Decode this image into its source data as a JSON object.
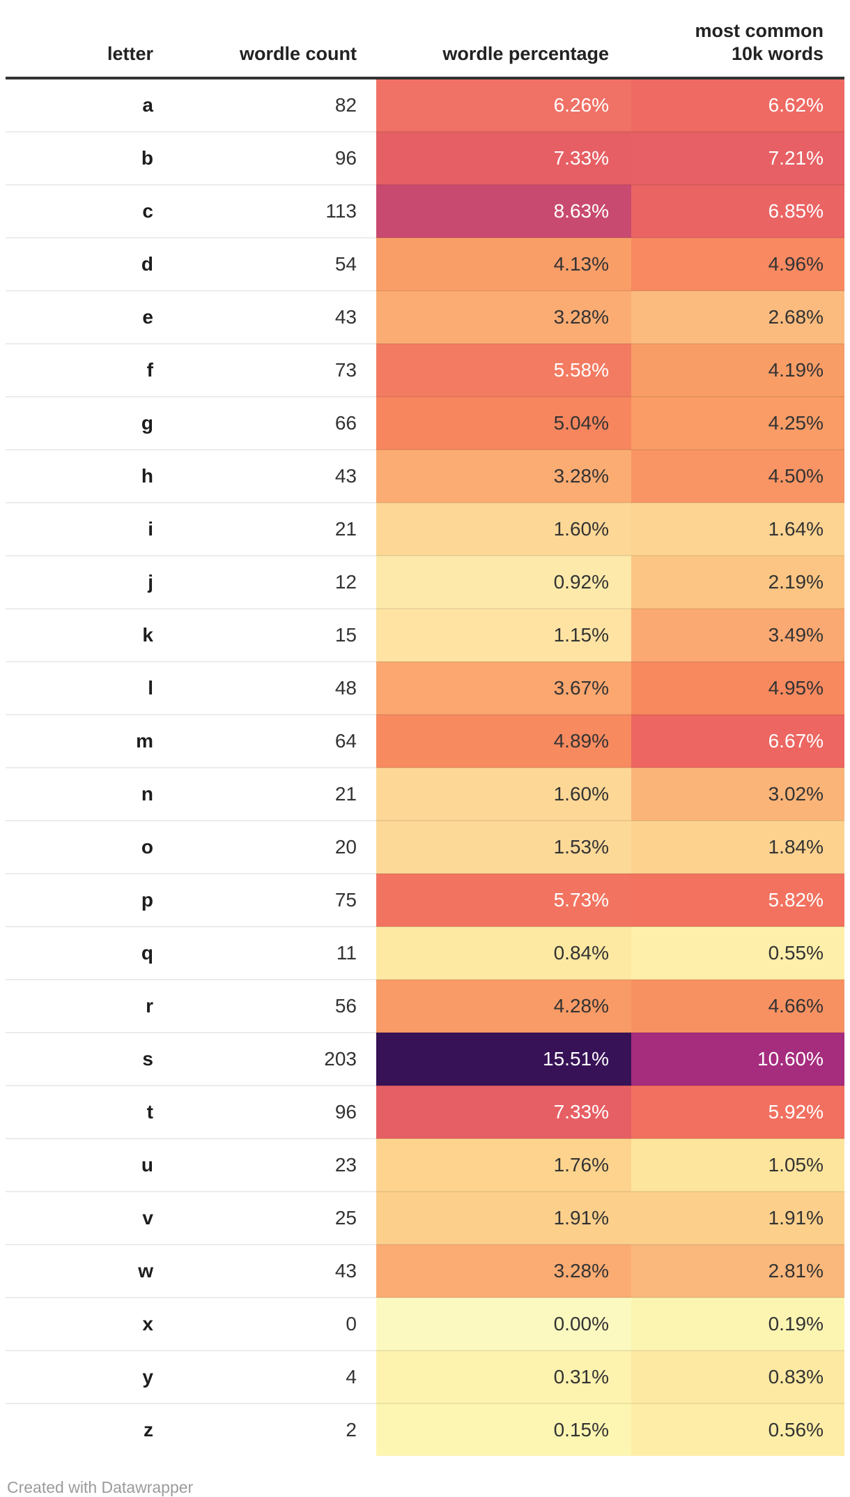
{
  "table": {
    "columns": [
      {
        "id": "letter",
        "label": "letter"
      },
      {
        "id": "wordle_count",
        "label": "wordle count"
      },
      {
        "id": "wordle_percentage",
        "label": "wordle percentage"
      },
      {
        "id": "common_10k",
        "label": "most common\n10k words"
      }
    ],
    "rows": [
      {
        "letter": "a",
        "count": "82",
        "wordle_pct": "6.26%",
        "wordle_bg": "#f07166",
        "wordle_fg": "#ffffff",
        "common_pct": "6.62%",
        "common_bg": "#ee6a63",
        "common_fg": "#ffffff"
      },
      {
        "letter": "b",
        "count": "96",
        "wordle_pct": "7.33%",
        "wordle_bg": "#e65f64",
        "wordle_fg": "#ffffff",
        "common_pct": "7.21%",
        "common_bg": "#e76065",
        "common_fg": "#ffffff"
      },
      {
        "letter": "c",
        "count": "113",
        "wordle_pct": "8.63%",
        "wordle_bg": "#c94a70",
        "wordle_fg": "#ffffff",
        "common_pct": "6.85%",
        "common_bg": "#eb6464",
        "common_fg": "#ffffff"
      },
      {
        "letter": "d",
        "count": "54",
        "wordle_pct": "4.13%",
        "wordle_bg": "#fa9e68",
        "wordle_fg": "#333333",
        "common_pct": "4.96%",
        "common_bg": "#f88961",
        "common_fg": "#333333"
      },
      {
        "letter": "e",
        "count": "43",
        "wordle_pct": "3.28%",
        "wordle_bg": "#fbac73",
        "wordle_fg": "#333333",
        "common_pct": "2.68%",
        "common_bg": "#fbbb7e",
        "common_fg": "#333333"
      },
      {
        "letter": "f",
        "count": "73",
        "wordle_pct": "5.58%",
        "wordle_bg": "#f37b62",
        "wordle_fg": "#ffffff",
        "common_pct": "4.19%",
        "common_bg": "#f99d67",
        "common_fg": "#333333"
      },
      {
        "letter": "g",
        "count": "66",
        "wordle_pct": "5.04%",
        "wordle_bg": "#f7865e",
        "wordle_fg": "#333333",
        "common_pct": "4.25%",
        "common_bg": "#f99c66",
        "common_fg": "#333333"
      },
      {
        "letter": "h",
        "count": "43",
        "wordle_pct": "3.28%",
        "wordle_bg": "#fbac73",
        "wordle_fg": "#333333",
        "common_pct": "4.50%",
        "common_bg": "#f99564",
        "common_fg": "#333333"
      },
      {
        "letter": "i",
        "count": "21",
        "wordle_pct": "1.60%",
        "wordle_bg": "#fdd795",
        "wordle_fg": "#333333",
        "common_pct": "1.64%",
        "common_bg": "#fdd492",
        "common_fg": "#333333"
      },
      {
        "letter": "j",
        "count": "12",
        "wordle_pct": "0.92%",
        "wordle_bg": "#fdeaaa",
        "wordle_fg": "#333333",
        "common_pct": "2.19%",
        "common_bg": "#fcc583",
        "common_fg": "#333333"
      },
      {
        "letter": "k",
        "count": "15",
        "wordle_pct": "1.15%",
        "wordle_bg": "#fee3a2",
        "wordle_fg": "#333333",
        "common_pct": "3.49%",
        "common_bg": "#fba972",
        "common_fg": "#333333"
      },
      {
        "letter": "l",
        "count": "48",
        "wordle_pct": "3.67%",
        "wordle_bg": "#fba76f",
        "wordle_fg": "#333333",
        "common_pct": "4.95%",
        "common_bg": "#f8895f",
        "common_fg": "#333333"
      },
      {
        "letter": "m",
        "count": "64",
        "wordle_pct": "4.89%",
        "wordle_bg": "#f88a60",
        "wordle_fg": "#333333",
        "common_pct": "6.67%",
        "common_bg": "#ed6661",
        "common_fg": "#ffffff"
      },
      {
        "letter": "n",
        "count": "21",
        "wordle_pct": "1.60%",
        "wordle_bg": "#fdd795",
        "wordle_fg": "#333333",
        "common_pct": "3.02%",
        "common_bg": "#fbb478",
        "common_fg": "#333333"
      },
      {
        "letter": "o",
        "count": "20",
        "wordle_pct": "1.53%",
        "wordle_bg": "#fdd998",
        "wordle_fg": "#333333",
        "common_pct": "1.84%",
        "common_bg": "#fdd28f",
        "common_fg": "#333333"
      },
      {
        "letter": "p",
        "count": "75",
        "wordle_pct": "5.73%",
        "wordle_bg": "#f27460",
        "wordle_fg": "#ffffff",
        "common_pct": "5.82%",
        "common_bg": "#f2725f",
        "common_fg": "#ffffff"
      },
      {
        "letter": "q",
        "count": "11",
        "wordle_pct": "0.84%",
        "wordle_bg": "#fde9a2",
        "wordle_fg": "#333333",
        "common_pct": "0.55%",
        "common_bg": "#feefaa",
        "common_fg": "#333333"
      },
      {
        "letter": "r",
        "count": "56",
        "wordle_pct": "4.28%",
        "wordle_bg": "#f99b66",
        "wordle_fg": "#333333",
        "common_pct": "4.66%",
        "common_bg": "#f89162",
        "common_fg": "#333333"
      },
      {
        "letter": "s",
        "count": "203",
        "wordle_pct": "15.51%",
        "wordle_bg": "#371257",
        "wordle_fg": "#ffffff",
        "common_pct": "10.60%",
        "common_bg": "#a62c7e",
        "common_fg": "#ffffff"
      },
      {
        "letter": "t",
        "count": "96",
        "wordle_pct": "7.33%",
        "wordle_bg": "#e65f64",
        "wordle_fg": "#ffffff",
        "common_pct": "5.92%",
        "common_bg": "#f17060",
        "common_fg": "#ffffff"
      },
      {
        "letter": "u",
        "count": "23",
        "wordle_pct": "1.76%",
        "wordle_bg": "#fdd38e",
        "wordle_fg": "#333333",
        "common_pct": "1.05%",
        "common_bg": "#fee59d",
        "common_fg": "#333333"
      },
      {
        "letter": "v",
        "count": "25",
        "wordle_pct": "1.91%",
        "wordle_bg": "#fccf8b",
        "wordle_fg": "#333333",
        "common_pct": "1.91%",
        "common_bg": "#fccf8b",
        "common_fg": "#333333"
      },
      {
        "letter": "w",
        "count": "43",
        "wordle_pct": "3.28%",
        "wordle_bg": "#fbac73",
        "wordle_fg": "#333333",
        "common_pct": "2.81%",
        "common_bg": "#fbb87c",
        "common_fg": "#333333"
      },
      {
        "letter": "x",
        "count": "0",
        "wordle_pct": "0.00%",
        "wordle_bg": "#fbf9c0",
        "wordle_fg": "#333333",
        "common_pct": "0.19%",
        "common_bg": "#fcf5b2",
        "common_fg": "#333333"
      },
      {
        "letter": "y",
        "count": "4",
        "wordle_pct": "0.31%",
        "wordle_bg": "#fdf2ae",
        "wordle_fg": "#333333",
        "common_pct": "0.83%",
        "common_bg": "#fde9a2",
        "common_fg": "#333333"
      },
      {
        "letter": "z",
        "count": "2",
        "wordle_pct": "0.15%",
        "wordle_bg": "#fdf6b2",
        "wordle_fg": "#333333",
        "common_pct": "0.56%",
        "common_bg": "#feeda6",
        "common_fg": "#333333"
      }
    ]
  },
  "footer": {
    "credit": "Created with Datawrapper"
  },
  "style": {
    "header_rule_color": "#333333",
    "row_divider_color": "#ececec",
    "heat_scale_low": "#fbf9c0",
    "heat_scale_mid": "#e65f64",
    "heat_scale_high": "#371257",
    "footer_text_color": "#9b9b9b"
  },
  "chart_data": {
    "type": "table",
    "subtype": "heatmap-table",
    "title": "",
    "columns": [
      "letter",
      "wordle count",
      "wordle percentage",
      "most common 10k words"
    ],
    "heatmap_columns": [
      "wordle percentage",
      "most common 10k words"
    ],
    "heatmap_range_pct": [
      0.0,
      15.51
    ],
    "rows": [
      [
        "a",
        82,
        6.26,
        6.62
      ],
      [
        "b",
        96,
        7.33,
        7.21
      ],
      [
        "c",
        113,
        8.63,
        6.85
      ],
      [
        "d",
        54,
        4.13,
        4.96
      ],
      [
        "e",
        43,
        3.28,
        2.68
      ],
      [
        "f",
        73,
        5.58,
        4.19
      ],
      [
        "g",
        66,
        5.04,
        4.25
      ],
      [
        "h",
        43,
        3.28,
        4.5
      ],
      [
        "i",
        21,
        1.6,
        1.64
      ],
      [
        "j",
        12,
        0.92,
        2.19
      ],
      [
        "k",
        15,
        1.15,
        3.49
      ],
      [
        "l",
        48,
        3.67,
        4.95
      ],
      [
        "m",
        64,
        4.89,
        6.67
      ],
      [
        "n",
        21,
        1.6,
        3.02
      ],
      [
        "o",
        20,
        1.53,
        1.84
      ],
      [
        "p",
        75,
        5.73,
        5.82
      ],
      [
        "q",
        11,
        0.84,
        0.55
      ],
      [
        "r",
        56,
        4.28,
        4.66
      ],
      [
        "s",
        203,
        15.51,
        10.6
      ],
      [
        "t",
        96,
        7.33,
        5.92
      ],
      [
        "u",
        23,
        1.76,
        1.05
      ],
      [
        "v",
        25,
        1.91,
        1.91
      ],
      [
        "w",
        43,
        3.28,
        2.81
      ],
      [
        "x",
        0,
        0.0,
        0.19
      ],
      [
        "y",
        4,
        0.31,
        0.83
      ],
      [
        "z",
        2,
        0.15,
        0.56
      ]
    ]
  }
}
